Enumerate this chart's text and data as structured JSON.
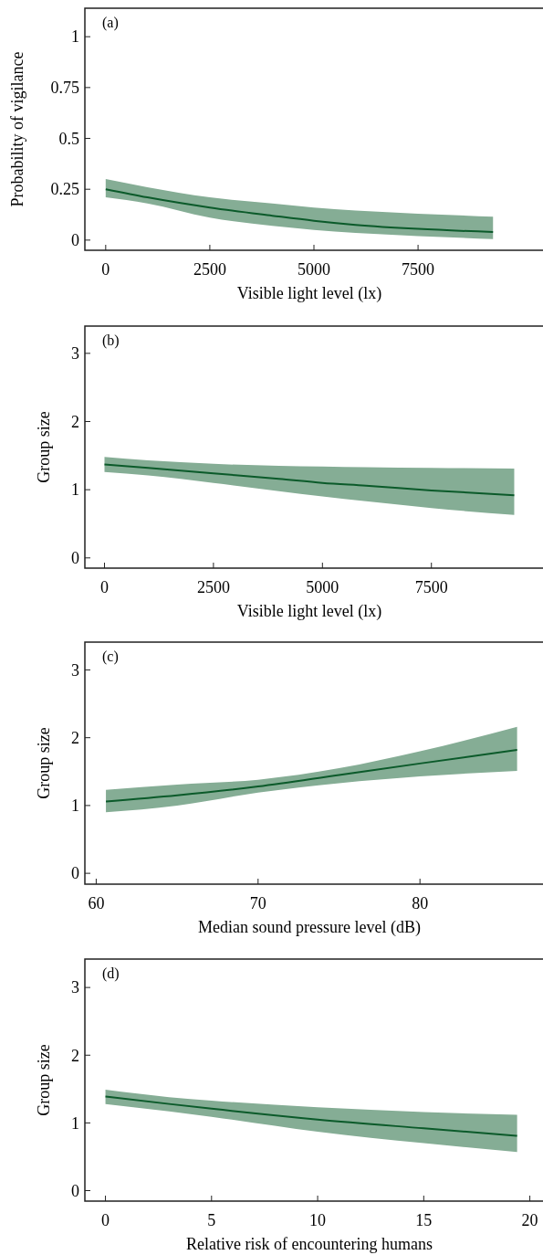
{
  "chart_data": [
    {
      "type": "line",
      "xlabel": "Visible light level (lx)",
      "ylabel": "Probability of vigilance",
      "annotations": [
        "(a)"
      ],
      "xlim": [
        -500,
        10500
      ],
      "ylim": [
        -0.05,
        1.14
      ],
      "xticks": [
        0,
        2500,
        5000,
        7500
      ],
      "yticks": [
        0,
        0.25,
        0.5,
        0.75,
        1
      ],
      "x": [
        0,
        1000,
        2500,
        4000,
        5000,
        6000,
        7500,
        9300
      ],
      "series": [
        {
          "color": "#0b5a2a",
          "values": [
            0.25,
            0.21,
            0.16,
            0.12,
            0.095,
            0.075,
            0.055,
            0.04
          ],
          "lower": [
            0.21,
            0.18,
            0.11,
            0.07,
            0.05,
            0.035,
            0.02,
            0.005
          ],
          "upper": [
            0.3,
            0.26,
            0.21,
            0.18,
            0.16,
            0.145,
            0.13,
            0.115
          ]
        }
      ]
    },
    {
      "type": "line",
      "xlabel": "Visible light level (lx)",
      "ylabel": "Group size",
      "annotations": [
        "(b)"
      ],
      "xlim": [
        -450,
        10060
      ],
      "ylim": [
        -0.15,
        3.4
      ],
      "xticks": [
        0,
        2500,
        5000,
        7500
      ],
      "yticks": [
        0,
        1,
        2,
        3
      ],
      "x": [
        0,
        1000,
        2500,
        4000,
        5000,
        6000,
        7500,
        9400
      ],
      "series": [
        {
          "color": "#0b5a2a",
          "values": [
            1.37,
            1.32,
            1.24,
            1.16,
            1.1,
            1.06,
            0.99,
            0.92
          ],
          "lower": [
            1.26,
            1.21,
            1.1,
            0.98,
            0.9,
            0.83,
            0.73,
            0.63
          ],
          "upper": [
            1.48,
            1.43,
            1.38,
            1.35,
            1.34,
            1.33,
            1.32,
            1.31
          ]
        }
      ]
    },
    {
      "type": "line",
      "xlabel": "Median sound pressure level (dB)",
      "ylabel": "Group size",
      "annotations": [
        "(c)"
      ],
      "xlim": [
        59.3,
        87.6
      ],
      "ylim": [
        -0.16,
        3.41
      ],
      "xticks": [
        60,
        70,
        80
      ],
      "yticks": [
        0,
        1,
        2,
        3
      ],
      "x": [
        60.6,
        65,
        70,
        75,
        80,
        86
      ],
      "series": [
        {
          "color": "#0b5a2a",
          "values": [
            1.06,
            1.15,
            1.28,
            1.45,
            1.62,
            1.82
          ],
          "lower": [
            0.9,
            1.0,
            1.19,
            1.33,
            1.43,
            1.51
          ],
          "upper": [
            1.23,
            1.31,
            1.38,
            1.55,
            1.8,
            2.16
          ]
        }
      ]
    },
    {
      "type": "line",
      "xlabel": "Relative risk of encountering humans",
      "ylabel": "Group size",
      "annotations": [
        "(d)"
      ],
      "xlim": [
        -0.97,
        20.62
      ],
      "ylim": [
        -0.155,
        3.42
      ],
      "xticks": [
        0,
        5,
        10,
        15,
        20
      ],
      "yticks": [
        0,
        1,
        2,
        3
      ],
      "x": [
        0,
        3,
        5,
        10,
        15,
        19.4
      ],
      "series": [
        {
          "color": "#0b5a2a",
          "values": [
            1.39,
            1.28,
            1.21,
            1.05,
            0.92,
            0.81
          ],
          "lower": [
            1.28,
            1.17,
            1.09,
            0.87,
            0.7,
            0.57
          ],
          "upper": [
            1.49,
            1.38,
            1.33,
            1.23,
            1.16,
            1.12
          ]
        }
      ]
    }
  ]
}
